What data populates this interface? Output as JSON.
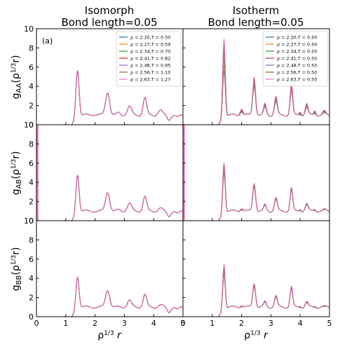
{
  "figure": {
    "col_titles": [
      [
        "Isomorph",
        "Bond length=0.05"
      ],
      [
        "Isotherm",
        "Bond length=0.05"
      ]
    ],
    "row_ylabels": [
      "g_{AA}(ρ^{1/3}r)",
      "g_{AB}(ρ^{1/3}r)",
      "g_{BB}(ρ^{1/3}r)"
    ],
    "xlabel": "ρ^{1/3} r",
    "panel_tag": "(a)"
  },
  "chart_data": {
    "type": "line",
    "layout": "3x2 grid",
    "xlim": [
      0,
      5
    ],
    "ylim": [
      0,
      10
    ],
    "xticks": [
      0,
      1,
      2,
      3,
      4,
      5
    ],
    "yticks": [
      0,
      2,
      4,
      6,
      8,
      10
    ],
    "grid": false,
    "legend_placement": "top-right",
    "legends": {
      "isomorph": [
        {
          "label": "ρ = 2.20,T = 0.50",
          "color": "#1f77b4"
        },
        {
          "label": "ρ = 2.27,T = 0.59",
          "color": "#ff7f0e"
        },
        {
          "label": "ρ = 2.34,T = 0.70",
          "color": "#2ca02c"
        },
        {
          "label": "ρ = 2.41,T = 0.82",
          "color": "#d62728"
        },
        {
          "label": "ρ = 2.48,T = 0.95",
          "color": "#9467bd"
        },
        {
          "label": "ρ = 2.56,T = 1.10",
          "color": "#8c564b"
        },
        {
          "label": "ρ = 2.63,T = 1.27",
          "color": "#e377c2"
        }
      ],
      "isotherm": [
        {
          "label": "ρ = 2.20,T = 0.50",
          "color": "#1f77b4"
        },
        {
          "label": "ρ = 2.27,T = 0.50",
          "color": "#ff7f0e"
        },
        {
          "label": "ρ = 2.34,T = 0.50",
          "color": "#2ca02c"
        },
        {
          "label": "ρ = 2.41,T = 0.50",
          "color": "#d62728"
        },
        {
          "label": "ρ = 2.48,T = 0.50",
          "color": "#9467bd"
        },
        {
          "label": "ρ = 2.56,T = 0.50",
          "color": "#8c564b"
        },
        {
          "label": "ρ = 2.63,T = 0.50",
          "color": "#e377c2"
        }
      ]
    },
    "panels": [
      {
        "row": 0,
        "col": 0,
        "legend": "isomorph",
        "spike_at_origin": false,
        "peaks_spread": [
          0,
          0,
          0,
          0,
          0,
          0,
          0
        ],
        "peaks": [
          [
            1.4,
            6.1,
            0.055
          ],
          [
            2.0,
            1.1,
            0.08
          ],
          [
            2.43,
            3.4,
            0.07
          ],
          [
            2.8,
            1.2,
            0.06
          ],
          [
            3.17,
            1.9,
            0.07
          ],
          [
            3.7,
            2.8,
            0.06
          ],
          [
            4.22,
            1.5,
            0.07
          ],
          [
            4.52,
            0.55,
            0.06
          ],
          [
            4.82,
            0.75,
            0.06
          ]
        ]
      },
      {
        "row": 0,
        "col": 1,
        "legend": "isotherm",
        "spike_at_origin": false,
        "peaks_spread": [
          -0.24,
          -0.16,
          -0.08,
          0,
          0.06,
          0.12,
          0.18
        ],
        "peaks": [
          [
            1.4,
            8.0,
            0.045
          ],
          [
            2.0,
            1.6,
            0.05
          ],
          [
            2.43,
            4.6,
            0.05
          ],
          [
            2.8,
            2.0,
            0.045
          ],
          [
            3.17,
            2.7,
            0.05
          ],
          [
            3.7,
            3.9,
            0.045
          ],
          [
            4.0,
            1.3,
            0.04
          ],
          [
            4.22,
            2.0,
            0.05
          ],
          [
            4.5,
            1.4,
            0.04
          ],
          [
            4.82,
            1.3,
            0.05
          ]
        ]
      },
      {
        "row": 1,
        "col": 0,
        "legend": null,
        "spike_at_origin": true,
        "peaks_spread": [
          0,
          0,
          0,
          0,
          0,
          0,
          0
        ],
        "peaks": [
          [
            1.4,
            5.2,
            0.055
          ],
          [
            2.0,
            1.0,
            0.08
          ],
          [
            2.43,
            3.0,
            0.07
          ],
          [
            2.8,
            1.1,
            0.06
          ],
          [
            3.17,
            1.8,
            0.07
          ],
          [
            3.7,
            2.5,
            0.06
          ],
          [
            4.22,
            1.3,
            0.07
          ],
          [
            4.52,
            0.5,
            0.06
          ],
          [
            4.82,
            0.7,
            0.06
          ]
        ]
      },
      {
        "row": 1,
        "col": 1,
        "legend": null,
        "spike_at_origin": true,
        "peaks_spread": [
          -0.1,
          -0.06,
          -0.03,
          0,
          0.03,
          0.06,
          0.09
        ],
        "peaks": [
          [
            1.4,
            6.0,
            0.045
          ],
          [
            2.0,
            1.3,
            0.05
          ],
          [
            2.43,
            3.8,
            0.05
          ],
          [
            2.8,
            1.6,
            0.045
          ],
          [
            3.17,
            2.3,
            0.05
          ],
          [
            3.7,
            3.3,
            0.045
          ],
          [
            4.0,
            1.2,
            0.04
          ],
          [
            4.22,
            1.7,
            0.05
          ],
          [
            4.5,
            1.2,
            0.04
          ],
          [
            4.82,
            1.1,
            0.05
          ]
        ]
      },
      {
        "row": 2,
        "col": 0,
        "legend": null,
        "spike_at_origin": false,
        "peaks_spread": [
          0,
          0,
          0,
          0,
          0,
          0,
          0
        ],
        "peaks": [
          [
            1.4,
            4.6,
            0.055
          ],
          [
            2.0,
            1.0,
            0.08
          ],
          [
            2.43,
            2.8,
            0.07
          ],
          [
            2.8,
            1.0,
            0.06
          ],
          [
            3.17,
            1.7,
            0.07
          ],
          [
            3.7,
            2.3,
            0.06
          ],
          [
            4.22,
            1.2,
            0.07
          ],
          [
            4.52,
            0.5,
            0.06
          ],
          [
            4.82,
            0.7,
            0.06
          ]
        ]
      },
      {
        "row": 2,
        "col": 1,
        "legend": null,
        "spike_at_origin": false,
        "peaks_spread": [
          -0.1,
          -0.06,
          -0.03,
          0,
          0.03,
          0.06,
          0.09
        ],
        "peaks": [
          [
            1.4,
            5.4,
            0.045
          ],
          [
            2.0,
            1.2,
            0.05
          ],
          [
            2.43,
            3.4,
            0.05
          ],
          [
            2.8,
            1.5,
            0.045
          ],
          [
            3.17,
            2.1,
            0.05
          ],
          [
            3.7,
            3.0,
            0.045
          ],
          [
            4.0,
            1.1,
            0.04
          ],
          [
            4.22,
            1.5,
            0.05
          ],
          [
            4.5,
            1.1,
            0.04
          ],
          [
            4.82,
            1.0,
            0.05
          ]
        ]
      }
    ]
  }
}
